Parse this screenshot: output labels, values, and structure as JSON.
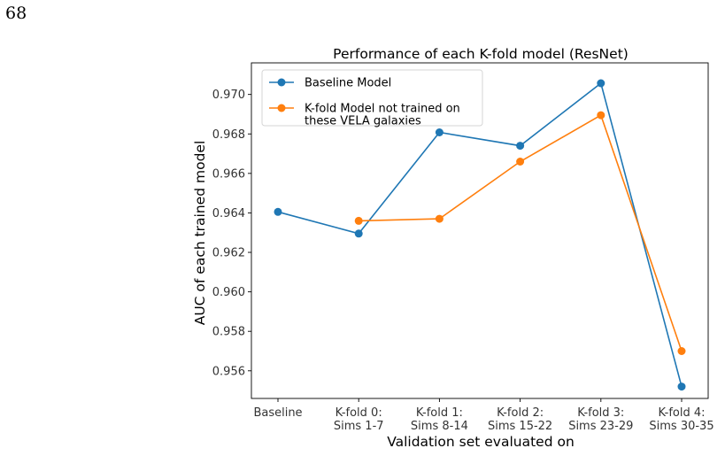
{
  "page": {
    "number": "68"
  },
  "colors": {
    "series_0": "#1f77b4",
    "series_1": "#ff7f0e"
  },
  "chart_data": {
    "type": "line",
    "title": "Performance of each K-fold model (ResNet)",
    "xlabel": "Validation set evaluated on",
    "ylabel": "AUC of each trained model",
    "categories": [
      [
        "Baseline"
      ],
      [
        "K-fold 0:",
        "Sims 1-7"
      ],
      [
        "K-fold 1:",
        "Sims 8-14"
      ],
      [
        "K-fold 2:",
        "Sims 15-22"
      ],
      [
        "K-fold 3:",
        "Sims 23-29"
      ],
      [
        "K-fold 4:",
        "Sims 30-35"
      ]
    ],
    "ylim": [
      0.9546,
      0.9716
    ],
    "yticks": [
      "0.956",
      "0.958",
      "0.960",
      "0.962",
      "0.964",
      "0.966",
      "0.968",
      "0.970"
    ],
    "legend_position": "top-left",
    "grid": false,
    "series": [
      {
        "name": [
          "Baseline Model"
        ],
        "color": "#1f77b4",
        "values": [
          0.96405,
          0.96295,
          0.96808,
          0.9674,
          0.97057,
          0.9552
        ]
      },
      {
        "name": [
          "K-fold Model not trained on",
          "these VELA galaxies"
        ],
        "color": "#ff7f0e",
        "values": [
          null,
          0.9636,
          0.9637,
          0.9666,
          0.96895,
          0.957
        ]
      }
    ]
  }
}
